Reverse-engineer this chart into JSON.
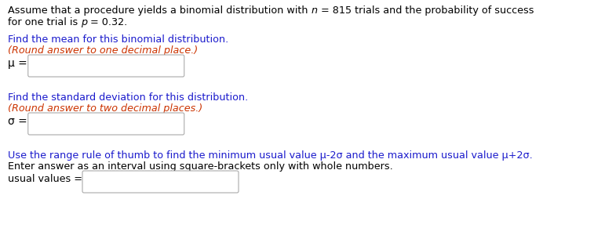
{
  "bg": "#ffffff",
  "black": "#000000",
  "blue": "#1a1acc",
  "darkred": "#cc3300",
  "gray": "#aaaaaa",
  "intro1a": "Assume that a procedure yields a binomial distribution with ",
  "intro1b": "n",
  "intro1c": " = 815 trials and the probability of success",
  "intro2a": "for one trial is ",
  "intro2b": "p",
  "intro2c": " = 0.32.",
  "q1a": "Find the mean for this binomial distribution.",
  "q1b": "(Round answer to one decimal place.)",
  "mu_label": "μ =",
  "q2a": "Find the standard deviation for this distribution.",
  "q2b": "(Round answer to two decimal places.)",
  "sigma_label": "σ =",
  "q3a": "Use the range rule of thumb to find the minimum usual value μ-2σ and the maximum usual value μ+2σ.",
  "q3b": "Enter answer as an interval using square-brackets only with whole numbers.",
  "usual_label": "usual values ="
}
